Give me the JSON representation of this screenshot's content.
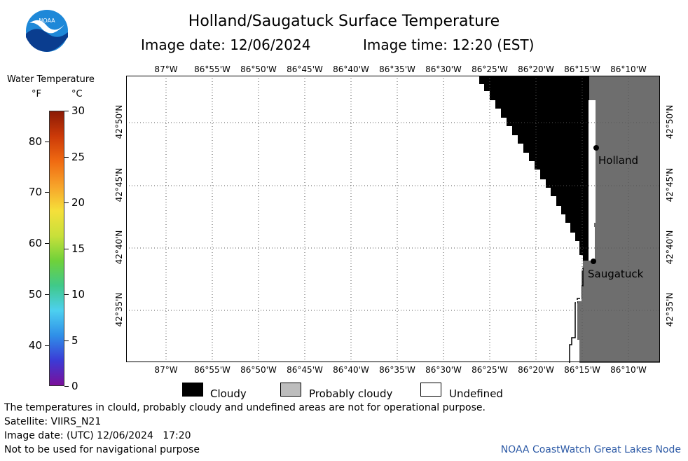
{
  "title": "Holland/Saugatuck Surface Temperature",
  "image_date": "Image date: 12/06/2024",
  "image_time": "Image time: 12:20 (EST)",
  "colorbar": {
    "title": "Water Temperature",
    "unit_f": "°F",
    "unit_c": "°C",
    "f_ticks": [
      "80",
      "70",
      "60",
      "50",
      "40"
    ],
    "f_values": [
      80,
      70,
      60,
      50,
      40
    ],
    "c_ticks": [
      "30",
      "25",
      "20",
      "15",
      "10",
      "5",
      "0"
    ],
    "c_values": [
      30,
      25,
      20,
      15,
      10,
      5,
      0
    ],
    "c_range": [
      0,
      30
    ],
    "colors": [
      "#7b0f9a",
      "#3b3bd6",
      "#2f8fe8",
      "#4dd0f0",
      "#40c98a",
      "#6fd13a",
      "#c8e03a",
      "#f5e03a",
      "#f7a32a",
      "#f06a12",
      "#cc3a08",
      "#8b1a05"
    ]
  },
  "map": {
    "lon_labels": [
      "87°W",
      "86°55'W",
      "86°50'W",
      "86°45'W",
      "86°40'W",
      "86°35'W",
      "86°30'W",
      "86°25'W",
      "86°20'W",
      "86°15'W",
      "86°10'W"
    ],
    "lat_labels": [
      "42°50'N",
      "42°45'N",
      "42°40'N",
      "42°35'N"
    ],
    "cities": [
      {
        "name": "Holland"
      },
      {
        "name": "Saugatuck"
      }
    ],
    "colors": {
      "cloudy": "#000000",
      "probably_cloudy": "#6e6e6e",
      "undefined": "#ffffff",
      "gridline": "#555555"
    }
  },
  "legend": {
    "cloudy": "Cloudy",
    "probably_cloudy": "Probably cloudy",
    "undefined": "Undefined",
    "colors": {
      "cloudy": "#000000",
      "probably_cloudy": "#bdbdbd",
      "undefined": "#ffffff"
    }
  },
  "footer": {
    "disclaimer": "The temperatures in clould, probably cloudy and undefined areas are not for operational purpose.",
    "satellite": "Satellite: VIIRS_N21",
    "utc_date": "Image date: (UTC) 12/06/2024   17:20",
    "nav_warning": "Not to be used for navigational purpose",
    "credit": "NOAA CoastWatch Great Lakes Node"
  },
  "logo": {
    "text": "NOAA"
  }
}
